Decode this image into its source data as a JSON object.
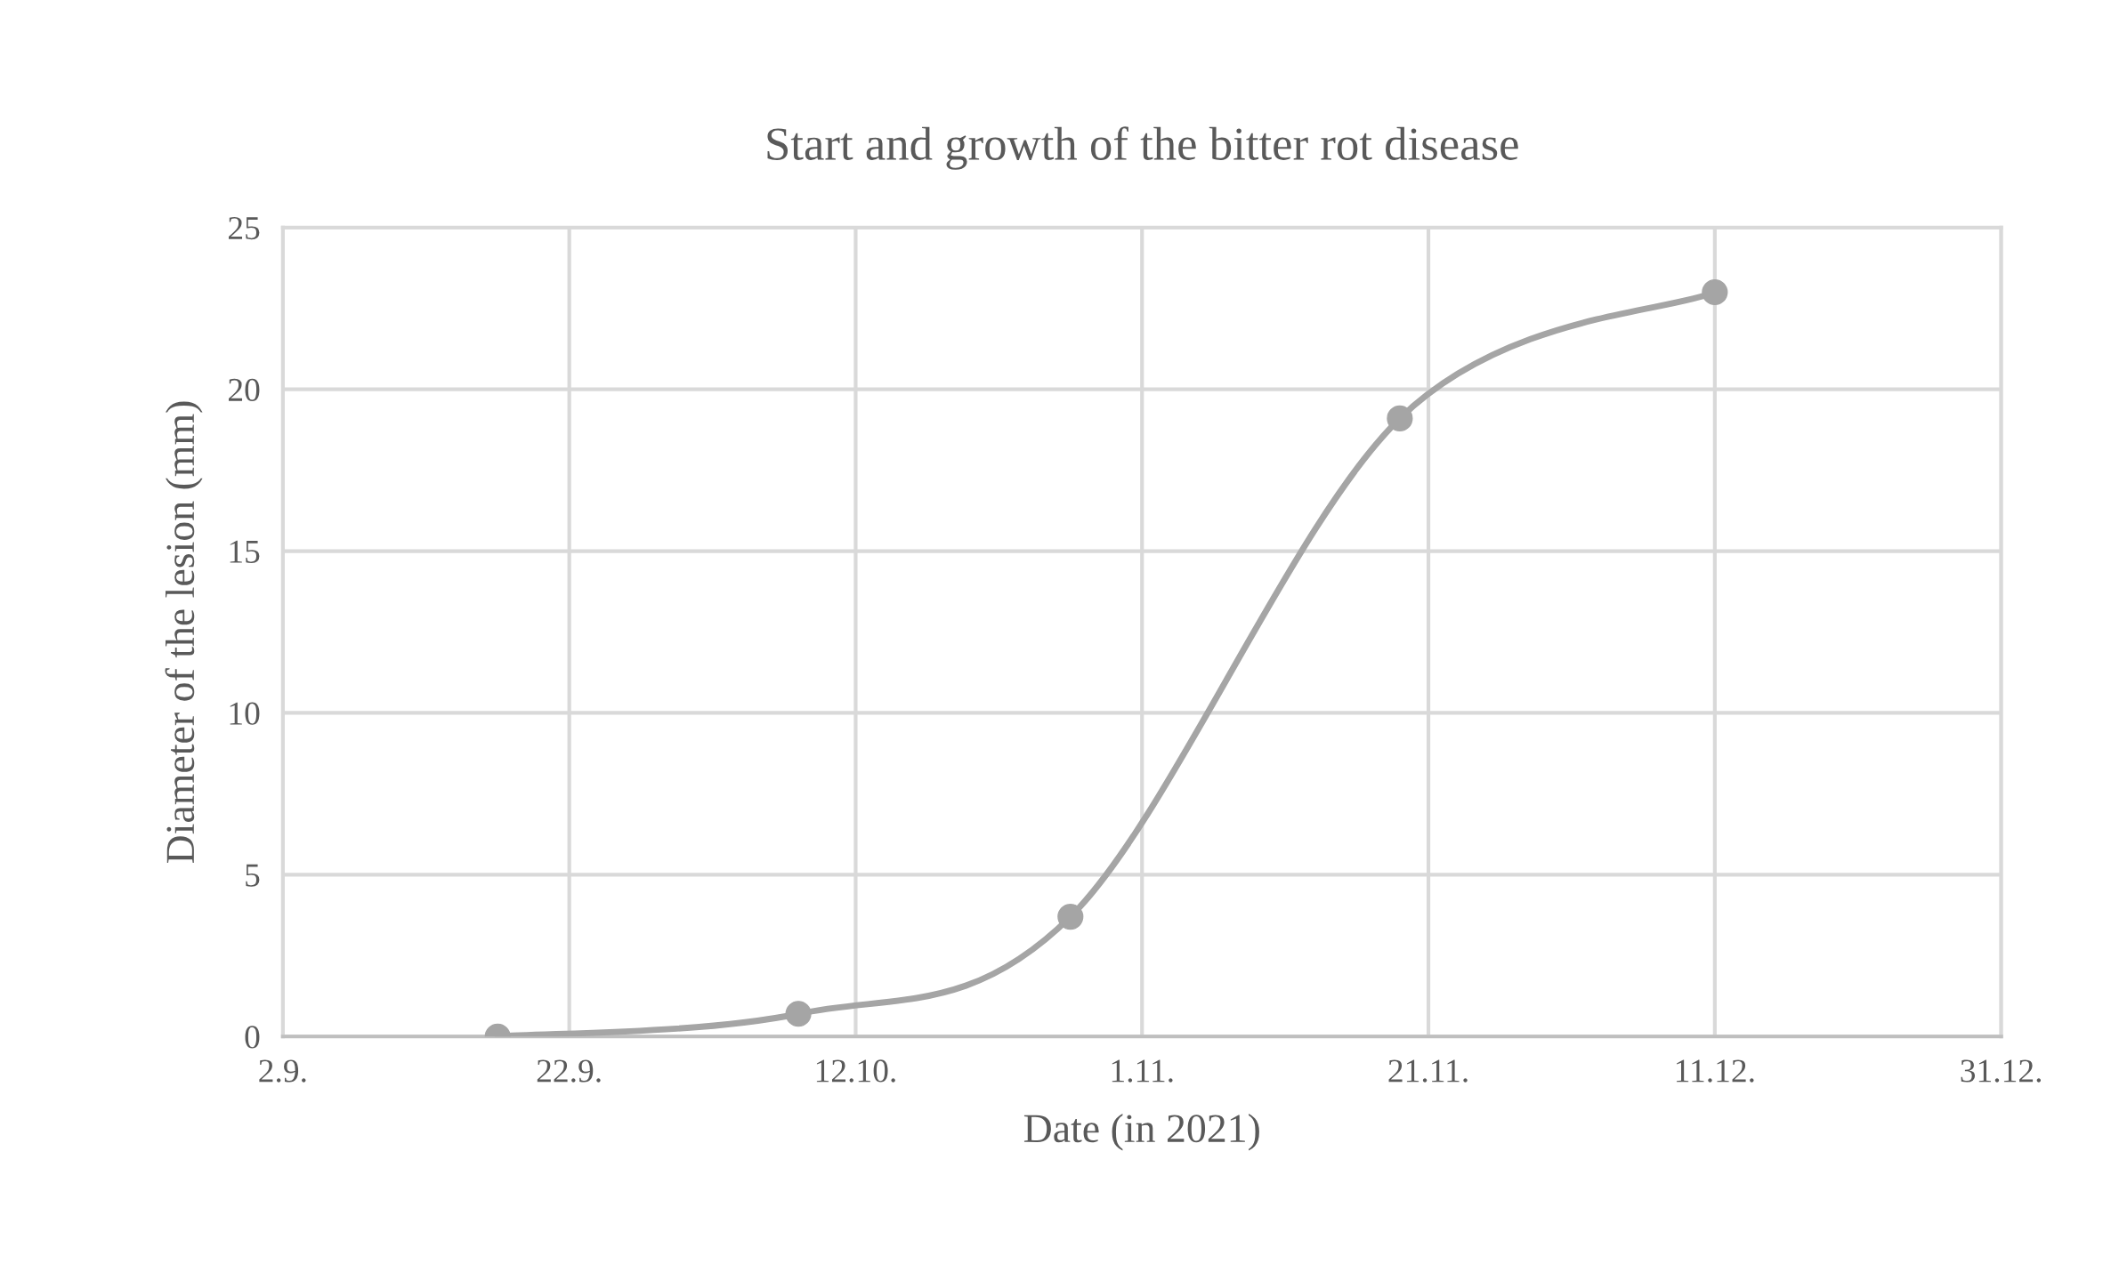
{
  "chart_data": {
    "type": "line",
    "title": "Start and growth of the bitter rot disease",
    "xlabel": "Date (in 2021)",
    "ylabel": "Diameter of the lesion (mm)",
    "x": [
      "2021-09-17",
      "2021-10-08",
      "2021-10-27",
      "2021-11-19",
      "2021-12-11"
    ],
    "series": [
      {
        "color": "#a5a5a5",
        "values": [
          0,
          0.7,
          3.7,
          19.1,
          23.0
        ]
      }
    ],
    "xlim": [
      "2021-09-02",
      "2021-12-31"
    ],
    "xticks": [
      {
        "value": "2021-09-02",
        "label": "2.9."
      },
      {
        "value": "2021-09-22",
        "label": "22.9."
      },
      {
        "value": "2021-10-12",
        "label": "12.10."
      },
      {
        "value": "2021-11-01",
        "label": "1.11."
      },
      {
        "value": "2021-11-21",
        "label": "21.11."
      },
      {
        "value": "2021-12-11",
        "label": "11.12."
      },
      {
        "value": "2021-12-31",
        "label": "31.12."
      }
    ],
    "ylim": [
      0,
      25
    ],
    "yticks": [
      0,
      5,
      10,
      15,
      20,
      25
    ],
    "grid": true,
    "marker": "circle",
    "line_style": "solid",
    "legend": false
  }
}
